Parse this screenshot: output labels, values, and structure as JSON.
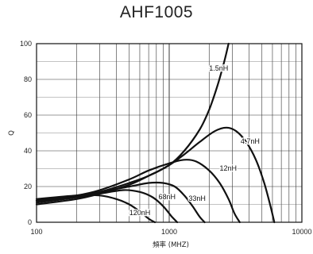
{
  "chart_data": {
    "type": "line",
    "title": "AHF1005",
    "xlabel": "頻率 (MHZ)",
    "ylabel": "Q",
    "xscale": "log",
    "xlim": [
      100,
      10000
    ],
    "ylim": [
      0,
      100
    ],
    "x_ticks": [
      100,
      1000,
      10000
    ],
    "x_tick_labels": [
      "100",
      "1000",
      "10000"
    ],
    "y_ticks": [
      0,
      20,
      40,
      60,
      80,
      100
    ],
    "y_tick_labels": [
      "0",
      "20",
      "40",
      "60",
      "80",
      "100"
    ],
    "grid": true,
    "series": [
      {
        "name": "1.5nH",
        "x": [
          100,
          200,
          300,
          500,
          700,
          1000,
          1300,
          1700,
          2000,
          2300,
          2600,
          2800
        ],
        "y": [
          10,
          13,
          16,
          21,
          26,
          32,
          40,
          52,
          63,
          76,
          90,
          100
        ]
      },
      {
        "name": "4.7nH",
        "x": [
          100,
          200,
          300,
          500,
          700,
          1000,
          1300,
          1700,
          2200,
          2700,
          3200,
          3800,
          4500,
          5200,
          5800,
          6200
        ],
        "y": [
          11,
          14,
          17,
          22,
          26,
          32,
          38,
          45,
          51,
          53,
          51,
          45,
          35,
          22,
          9,
          0
        ]
      },
      {
        "name": "12nH",
        "x": [
          100,
          200,
          300,
          500,
          700,
          1000,
          1300,
          1600,
          2000,
          2400,
          2800,
          3100,
          3400
        ],
        "y": [
          12,
          15,
          18,
          24,
          29,
          33,
          35,
          34,
          29,
          22,
          13,
          5,
          0
        ]
      },
      {
        "name": "33nH",
        "x": [
          100,
          200,
          300,
          500,
          700,
          900,
          1100,
          1300,
          1500,
          1700,
          1850
        ],
        "y": [
          12,
          15,
          17,
          20,
          22,
          22,
          20,
          15,
          9,
          3,
          0
        ]
      },
      {
        "name": "68nH",
        "x": [
          100,
          200,
          300,
          450,
          600,
          750,
          900,
          1050,
          1150
        ],
        "y": [
          12,
          14,
          16,
          18,
          17,
          14,
          9,
          3,
          0
        ]
      },
      {
        "name": "120nH",
        "x": [
          100,
          200,
          300,
          400,
          500,
          600,
          700,
          780
        ],
        "y": [
          13,
          15,
          15,
          13,
          10,
          6,
          2,
          0
        ]
      }
    ],
    "annotations": [
      {
        "text": "1.5nH",
        "x": 2000,
        "y": 85
      },
      {
        "text": "4.7nH",
        "x": 3450,
        "y": 44
      },
      {
        "text": "12nH",
        "x": 2400,
        "y": 29
      },
      {
        "text": "33nH",
        "x": 1400,
        "y": 12
      },
      {
        "text": "68nH",
        "x": 830,
        "y": 13
      },
      {
        "text": "120nH",
        "x": 500,
        "y": 4
      }
    ]
  }
}
